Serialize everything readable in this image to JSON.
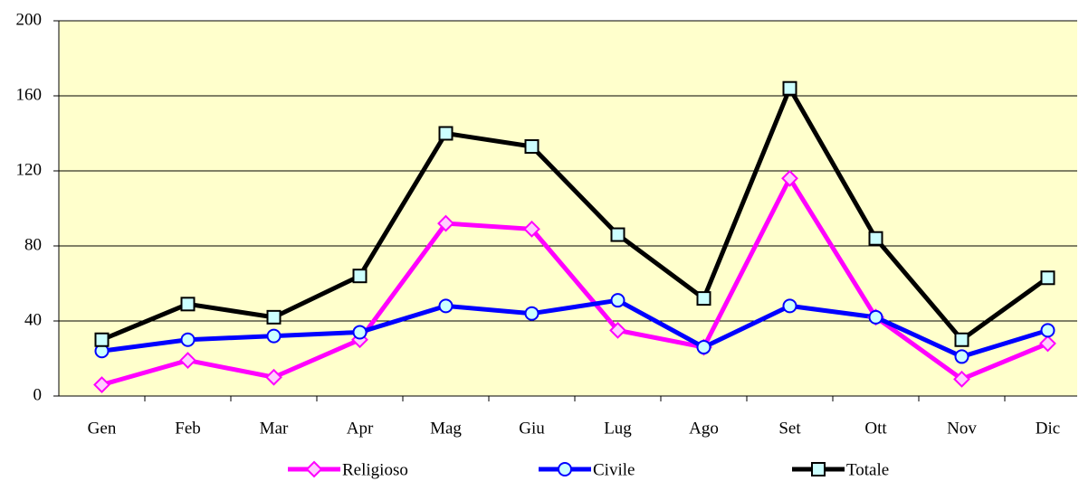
{
  "chart_data": {
    "type": "line",
    "categories": [
      "Gen",
      "Feb",
      "Mar",
      "Apr",
      "Mag",
      "Giu",
      "Lug",
      "Ago",
      "Set",
      "Ott",
      "Nov",
      "Dic"
    ],
    "series": [
      {
        "name": "Religioso",
        "color": "#ff00ff",
        "marker": "diamond",
        "marker_fill": "#ffccff",
        "values": [
          6,
          19,
          10,
          30,
          92,
          89,
          35,
          26,
          116,
          42,
          9,
          28
        ]
      },
      {
        "name": "Civile",
        "color": "#0000ff",
        "marker": "circle",
        "marker_fill": "#ccffff",
        "values": [
          24,
          30,
          32,
          34,
          48,
          44,
          51,
          26,
          48,
          42,
          21,
          35
        ]
      },
      {
        "name": "Totale",
        "color": "#000000",
        "marker": "square",
        "marker_fill": "#ccffff",
        "values": [
          30,
          49,
          42,
          64,
          140,
          133,
          86,
          52,
          164,
          84,
          30,
          63
        ]
      }
    ],
    "ylim": [
      0,
      200
    ],
    "yticks": [
      0,
      40,
      80,
      120,
      160,
      200
    ],
    "grid": true,
    "plot_background": "#ffffcc",
    "legend": "bottom"
  }
}
